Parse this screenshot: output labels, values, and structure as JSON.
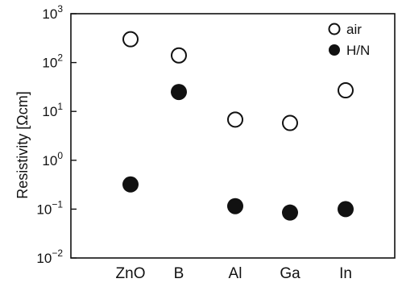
{
  "chart_data": {
    "type": "scatter",
    "ylabel": "Resistivity [Ωcm]",
    "y_scale": "log",
    "ylim": [
      0.01,
      1000
    ],
    "grid": false,
    "legend_position": "top-right",
    "categories": [
      "ZnO",
      "B",
      "Al",
      "Ga",
      "In"
    ],
    "y_ticks": [
      {
        "value": 1000,
        "base": "10",
        "exp": "3"
      },
      {
        "value": 100,
        "base": "10",
        "exp": "2"
      },
      {
        "value": 10,
        "base": "10",
        "exp": "1"
      },
      {
        "value": 1,
        "base": "10",
        "exp": "0"
      },
      {
        "value": 0.1,
        "base": "10",
        "exp": "−1"
      },
      {
        "value": 0.01,
        "base": "10",
        "exp": "−2"
      }
    ],
    "series": [
      {
        "name": "air",
        "marker": "open-circle",
        "values": [
          300,
          140,
          6.8,
          5.8,
          27
        ]
      },
      {
        "name": "H/N",
        "marker": "filled-circle",
        "values": [
          0.32,
          25,
          0.115,
          0.085,
          0.1
        ]
      }
    ]
  }
}
